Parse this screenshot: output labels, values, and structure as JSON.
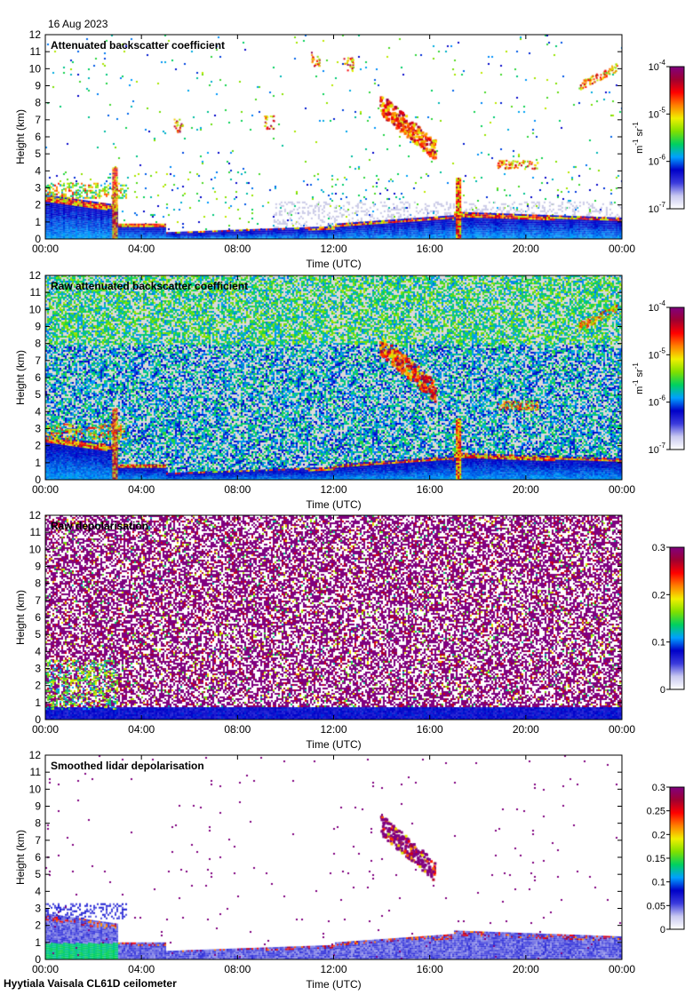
{
  "date": "16 Aug 2023",
  "footer": "Hyytiala Vaisala CL61D ceilometer",
  "colors": {
    "background": "#ffffff",
    "no_signal": "#d9d9d9",
    "colormap": [
      "#ffffff",
      "#c8c8f0",
      "#3b3bdc",
      "#0000c8",
      "#00a0ff",
      "#00d060",
      "#80e000",
      "#f0f000",
      "#ff8000",
      "#ff0000",
      "#a00030",
      "#800080"
    ]
  },
  "chart_data": [
    {
      "type": "heatmap",
      "title": "Attenuated backscatter coefficient",
      "xlabel": "Time (UTC)",
      "ylabel": "Height (km)",
      "xlim": [
        0,
        24
      ],
      "ylim": [
        0,
        12
      ],
      "xticks": [
        0,
        4,
        8,
        12,
        16,
        20,
        24
      ],
      "xtick_labels": [
        "00:00",
        "04:00",
        "08:00",
        "12:00",
        "16:00",
        "20:00",
        "00:00"
      ],
      "yticks": [
        0,
        1,
        2,
        3,
        4,
        5,
        6,
        7,
        8,
        9,
        10,
        11,
        12
      ],
      "colorbar": {
        "scale": "log",
        "range": [
          1e-07,
          0.0001
        ],
        "tick_labels": [
          {
            "base": "10",
            "exp": "-4"
          },
          {
            "base": "10",
            "exp": "-5"
          },
          {
            "base": "10",
            "exp": "-6"
          },
          {
            "base": "10",
            "exp": "-7"
          }
        ],
        "unit_label": {
          "parts": [
            [
              "m",
              ""
            ],
            [
              "-1",
              "sup"
            ],
            [
              " sr",
              ""
            ],
            [
              "-1",
              "sup"
            ]
          ]
        }
      },
      "features": [
        {
          "name": "boundary layer",
          "t_start": 0,
          "t_end": 24,
          "h_top": 2.3
        },
        {
          "name": "low cloud",
          "t_start": 0,
          "t_end": 3.5,
          "h_base": 2.5,
          "h_top": 3.2
        },
        {
          "name": "cirrus",
          "t_start": 13.8,
          "t_end": 16.3,
          "h_base": 5.0,
          "h_top": 8.0
        },
        {
          "name": "elevated layer",
          "t_start": 18.8,
          "t_end": 20.5,
          "h_base": 4.2,
          "h_top": 4.8
        },
        {
          "name": "high aerosol",
          "t_start": 22.2,
          "t_end": 23.8,
          "h_base": 8.6,
          "h_top": 10.3
        }
      ]
    },
    {
      "type": "heatmap",
      "title": "Raw attenuated backscatter coefficient",
      "xlabel": "Time (UTC)",
      "ylabel": "Height (km)",
      "xlim": [
        0,
        24
      ],
      "ylim": [
        0,
        12
      ],
      "xticks": [
        0,
        4,
        8,
        12,
        16,
        20,
        24
      ],
      "xtick_labels": [
        "00:00",
        "04:00",
        "08:00",
        "12:00",
        "16:00",
        "20:00",
        "00:00"
      ],
      "yticks": [
        0,
        1,
        2,
        3,
        4,
        5,
        6,
        7,
        8,
        9,
        10,
        11,
        12
      ],
      "colorbar": {
        "scale": "log",
        "range": [
          1e-07,
          0.0001
        ],
        "tick_labels": [
          {
            "base": "10",
            "exp": "-4"
          },
          {
            "base": "10",
            "exp": "-5"
          },
          {
            "base": "10",
            "exp": "-6"
          },
          {
            "base": "10",
            "exp": "-7"
          }
        ],
        "unit_label": {
          "parts": [
            [
              "m",
              ""
            ],
            [
              "-1",
              "sup"
            ],
            [
              " sr",
              ""
            ],
            [
              "-1",
              "sup"
            ]
          ]
        }
      },
      "features": [
        {
          "name": "boundary layer",
          "t_start": 0,
          "t_end": 24,
          "h_top": 2.3
        },
        {
          "name": "noise field",
          "t_start": 0,
          "t_end": 24,
          "h_base": 2.3,
          "h_top": 12
        },
        {
          "name": "cirrus",
          "t_start": 13.8,
          "t_end": 16.3,
          "h_base": 5.0,
          "h_top": 8.0
        }
      ]
    },
    {
      "type": "heatmap",
      "title": "Raw depolarisation",
      "xlabel": "Time (UTC)",
      "ylabel": "Height (km)",
      "xlim": [
        0,
        24
      ],
      "ylim": [
        0,
        12
      ],
      "xticks": [
        0,
        4,
        8,
        12,
        16,
        20,
        24
      ],
      "xtick_labels": [
        "00:00",
        "04:00",
        "08:00",
        "12:00",
        "16:00",
        "20:00",
        "00:00"
      ],
      "yticks": [
        0,
        1,
        2,
        3,
        4,
        5,
        6,
        7,
        8,
        9,
        10,
        11,
        12
      ],
      "colorbar": {
        "scale": "linear",
        "range": [
          0,
          0.3
        ],
        "ticks": [
          0.3,
          0.2,
          0.1,
          0
        ],
        "tick_labels": [
          "0.3",
          "0.2",
          "0.1",
          "0"
        ]
      },
      "features": [
        {
          "name": "low depolarisation layer",
          "t_start": 0,
          "t_end": 24,
          "h_top": 1.0
        },
        {
          "name": "noise field",
          "t_start": 0,
          "t_end": 24,
          "h_base": 1.0,
          "h_top": 12
        }
      ]
    },
    {
      "type": "heatmap",
      "title": "Smoothed lidar depolarisation",
      "xlabel": "Time (UTC)",
      "ylabel": "Height (km)",
      "xlim": [
        0,
        24
      ],
      "ylim": [
        0,
        12
      ],
      "xticks": [
        0,
        4,
        8,
        12,
        16,
        20,
        24
      ],
      "xtick_labels": [
        "00:00",
        "04:00",
        "08:00",
        "12:00",
        "16:00",
        "20:00",
        "00:00"
      ],
      "yticks": [
        0,
        1,
        2,
        3,
        4,
        5,
        6,
        7,
        8,
        9,
        10,
        11,
        12
      ],
      "colorbar": {
        "scale": "linear",
        "range": [
          0,
          0.3
        ],
        "ticks": [
          0.3,
          0.25,
          0.2,
          0.15,
          0.1,
          0.05,
          0
        ],
        "tick_labels": [
          "0.3",
          "0.25",
          "0.2",
          "0.15",
          "0.1",
          "0.05",
          "0"
        ]
      },
      "features": [
        {
          "name": "boundary layer",
          "t_start": 0,
          "t_end": 24,
          "h_top": 2.2
        },
        {
          "name": "cirrus",
          "t_start": 13.8,
          "t_end": 16.3,
          "h_base": 5.0,
          "h_top": 8.0
        }
      ]
    }
  ]
}
